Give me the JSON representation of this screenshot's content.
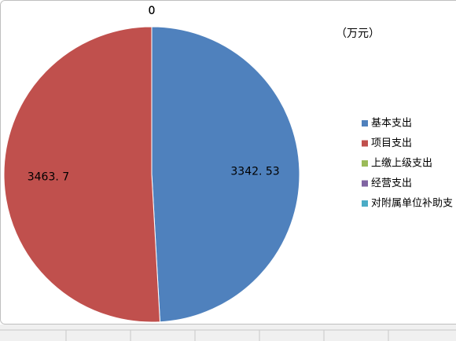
{
  "chart_data": {
    "type": "pie",
    "unit": "（万元）",
    "categories": [
      "基本支出",
      "项目支出",
      "上缴上级支出",
      "经营支出",
      "对附属单位补助支"
    ],
    "values": [
      3342.53,
      3463.7,
      0,
      0,
      0
    ],
    "value_labels": [
      "3342. 53",
      "3463. 7",
      "0",
      "0",
      "0"
    ],
    "colors": [
      "#4f81bd",
      "#c0504d",
      "#9bbb59",
      "#8064a2",
      "#4bacc6"
    ],
    "legend": "right"
  }
}
